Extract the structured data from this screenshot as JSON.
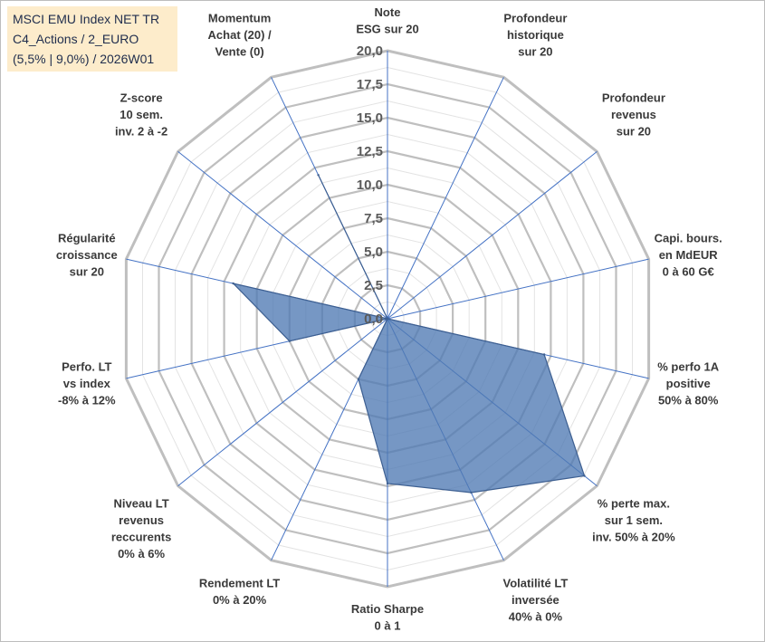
{
  "title_lines": [
    "MSCI EMU Index NET TR",
    "C4_Actions / 2_EURO",
    "(5,5% | 9,0%) / 2026W01"
  ],
  "colors": {
    "grid": "#bfbfbf",
    "spoke": "#4472c4",
    "fill": "#4f7ab3",
    "outline": "#3d5f91",
    "title_bg": "#fdeccb"
  },
  "chart_data": {
    "type": "radar",
    "title": "MSCI EMU Index NET TR",
    "rlim": [
      0,
      20
    ],
    "ticks": [
      "0,0",
      "2,5",
      "5,0",
      "7,5",
      "10,0",
      "12,5",
      "15,0",
      "17,5",
      "20,0"
    ],
    "tick_values": [
      0,
      2.5,
      5,
      7.5,
      10,
      12.5,
      15,
      17.5,
      20
    ],
    "axes": [
      {
        "lines": [
          "Note",
          "ESG sur 20"
        ],
        "value": 0
      },
      {
        "lines": [
          "Profondeur",
          "historique",
          "sur 20"
        ],
        "value": 0
      },
      {
        "lines": [
          "Profondeur",
          "revenus",
          "sur 20"
        ],
        "value": 0
      },
      {
        "lines": [
          "Capi. bours.",
          "en MdEUR",
          "0 à 60 G€"
        ],
        "value": 0
      },
      {
        "lines": [
          "% perfo 1A",
          "positive",
          "50% à 80%"
        ],
        "value": 12
      },
      {
        "lines": [
          "% perte max.",
          "sur 1 sem.",
          "inv. 50% à 20%"
        ],
        "value": 18.8
      },
      {
        "lines": [
          "Volatilité LT",
          "inversée",
          "40% à 0%"
        ],
        "value": 14.4
      },
      {
        "lines": [
          "Ratio Sharpe",
          "0 à 1"
        ],
        "value": 12.3
      },
      {
        "lines": [
          "Rendement LT",
          "0% à 20%"
        ],
        "value": 5
      },
      {
        "lines": [
          "Niveau LT",
          "revenus",
          "reccurents",
          "0% à 6%"
        ],
        "value": 0
      },
      {
        "lines": [
          "Perfo. LT",
          "vs index",
          "-8% à 12%"
        ],
        "value": 7.5
      },
      {
        "lines": [
          "Régularité",
          "croissance",
          "sur 20"
        ],
        "value": 11.8
      },
      {
        "lines": [
          "Z-score",
          "10 sem.",
          "inv. 2 à -2"
        ],
        "value": 0
      },
      {
        "lines": [
          "Momentum",
          "Achat (20) /",
          "Vente (0)"
        ],
        "value": 11.9
      }
    ]
  }
}
